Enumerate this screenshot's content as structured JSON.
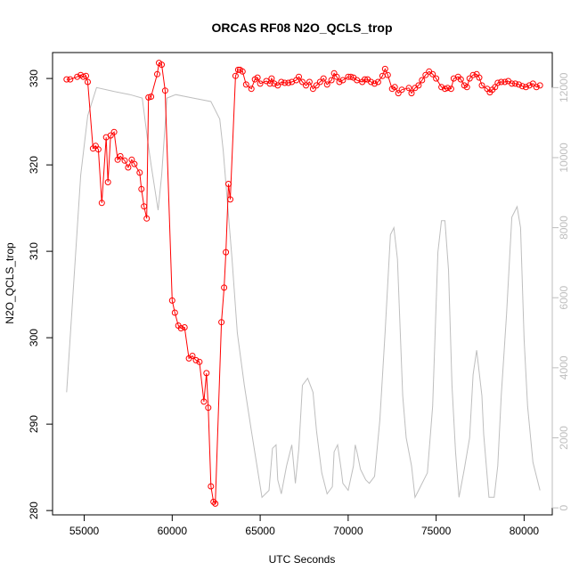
{
  "chart_data": {
    "type": "line",
    "title": "ORCAS RF08 N2O_QCLS_trop",
    "xlabel": "UTC Seconds",
    "ylabel": "N2O_QCLS_trop",
    "xlim": [
      53200,
      81600
    ],
    "ylim": [
      279.5,
      333
    ],
    "y2lim": [
      -200,
      13000
    ],
    "x_ticks": [
      55000,
      60000,
      65000,
      70000,
      75000,
      80000
    ],
    "y_ticks": [
      280,
      290,
      300,
      310,
      320,
      330
    ],
    "y2_ticks": [
      0,
      2000,
      4000,
      6000,
      8000,
      10000,
      12000
    ],
    "grid": false,
    "colors": {
      "primary": "#ff0000",
      "secondary": "#bebebe",
      "axis": "#000000"
    },
    "series": [
      {
        "role": "primary",
        "style": "line+circles",
        "x": [
          54000,
          54200,
          54600,
          54800,
          54950,
          55100,
          55200,
          55500,
          55650,
          55800,
          56000,
          56250,
          56350,
          56500,
          56700,
          56900,
          57050,
          57300,
          57500,
          57700,
          57850,
          58150,
          58250,
          58400,
          58550,
          58650,
          58800,
          59150,
          59250,
          59400,
          59600,
          60000,
          60150,
          60350,
          60500,
          60700,
          60950,
          61150,
          61350,
          61550,
          61800,
          61950,
          62050,
          62200,
          62350,
          62450,
          62800,
          62950,
          63050,
          63200,
          63300,
          63600,
          63750,
          63850,
          64000,
          64200,
          64500,
          64700,
          64850,
          65000,
          65350,
          65550,
          65650,
          65800,
          66000,
          66200,
          66400,
          66600,
          66800,
          67050,
          67200,
          67400,
          67600,
          67800,
          68000,
          68200,
          68400,
          68600,
          68800,
          69050,
          69200,
          69350,
          69500,
          69700,
          70000,
          70150,
          70300,
          70500,
          70800,
          70950,
          71100,
          71300,
          71500,
          71700,
          71950,
          72100,
          72250,
          72500,
          72650,
          72850,
          73050,
          73450,
          73600,
          73800,
          74000,
          74200,
          74400,
          74600,
          74800,
          75000,
          75300,
          75500,
          75650,
          75850,
          76000,
          76250,
          76400,
          76600,
          76750,
          76900,
          77100,
          77300,
          77450,
          77600,
          77900,
          78050,
          78200,
          78350,
          78500,
          78700,
          78900,
          79100,
          79300,
          79500,
          79700,
          79900,
          80100,
          80300,
          80500,
          80700,
          80900
        ],
        "y": [
          329.9,
          329.9,
          330.2,
          330.4,
          330.2,
          330.3,
          329.6,
          321.9,
          322.2,
          321.8,
          315.6,
          323.2,
          318.0,
          323.4,
          323.8,
          320.6,
          321.0,
          320.5,
          319.7,
          320.6,
          320.1,
          319.1,
          317.2,
          315.2,
          313.8,
          327.8,
          327.9,
          330.5,
          331.8,
          331.6,
          328.6,
          304.3,
          302.9,
          301.4,
          301.1,
          301.2,
          297.6,
          297.9,
          297.4,
          297.2,
          292.6,
          295.9,
          291.9,
          282.8,
          281.0,
          280.8,
          301.8,
          305.8,
          309.9,
          317.8,
          316.0,
          330.3,
          331.0,
          331.0,
          330.8,
          329.3,
          328.8,
          329.9,
          330.1,
          329.4,
          329.7,
          329.4,
          330.0,
          329.4,
          329.2,
          329.6,
          329.5,
          329.5,
          329.6,
          329.8,
          330.2,
          329.6,
          329.2,
          329.6,
          328.8,
          329.2,
          329.6,
          330.0,
          329.3,
          329.8,
          330.6,
          330.2,
          329.6,
          329.8,
          330.2,
          330.2,
          330.1,
          329.8,
          329.6,
          329.9,
          329.9,
          329.6,
          329.4,
          329.6,
          330.3,
          331.1,
          330.4,
          328.8,
          329.0,
          328.3,
          328.7,
          328.9,
          328.3,
          328.9,
          329.2,
          329.8,
          330.4,
          330.8,
          330.5,
          330.0,
          329.0,
          328.8,
          328.9,
          328.8,
          330.0,
          330.2,
          329.9,
          329.2,
          329.0,
          330.0,
          330.4,
          330.5,
          330.1,
          329.2,
          328.8,
          328.4,
          328.7,
          329.0,
          329.5,
          329.6,
          329.6,
          329.7,
          329.4,
          329.4,
          329.3,
          329.1,
          329.0,
          329.2,
          329.4,
          329.0,
          329.2
        ]
      },
      {
        "role": "secondary",
        "style": "line",
        "axis": "right",
        "x": [
          54000,
          54800,
          55200,
          55700,
          56600,
          57600,
          58300,
          58600,
          58800,
          59200,
          59400,
          59700,
          60200,
          61200,
          62200,
          62700,
          62900,
          63400,
          63700,
          64100,
          64500,
          65100,
          65500,
          65700,
          65900,
          66000,
          66200,
          66500,
          66800,
          67000,
          67200,
          67400,
          67700,
          68000,
          68200,
          68500,
          68800,
          69100,
          69200,
          69400,
          69600,
          69700,
          70000,
          70300,
          70400,
          70500,
          70700,
          71000,
          71200,
          71500,
          71800,
          72100,
          72400,
          72600,
          72800,
          73100,
          73300,
          73600,
          73800,
          74000,
          74500,
          74800,
          75100,
          75300,
          75500,
          75700,
          75900,
          76100,
          76300,
          76600,
          76900,
          77100,
          77300,
          77600,
          77700,
          78000,
          78300,
          78500,
          78700,
          79000,
          79300,
          79600,
          79800,
          80000,
          80200,
          80500,
          80900
        ],
        "y": [
          3300,
          9500,
          11200,
          12000,
          11900,
          11800,
          11700,
          10500,
          9800,
          8500,
          9500,
          11700,
          11800,
          11700,
          11600,
          11100,
          10200,
          7100,
          5000,
          3500,
          2200,
          300,
          500,
          1700,
          1800,
          800,
          400,
          1200,
          1800,
          700,
          1700,
          3500,
          3700,
          3300,
          2200,
          1000,
          400,
          600,
          1600,
          1800,
          1100,
          700,
          500,
          1200,
          1800,
          1600,
          1100,
          800,
          700,
          900,
          2500,
          5000,
          7800,
          8000,
          7100,
          3200,
          2000,
          1200,
          300,
          500,
          1000,
          2900,
          7300,
          8200,
          8200,
          6800,
          3500,
          1600,
          300,
          1100,
          2000,
          3800,
          4500,
          3200,
          2100,
          300,
          300,
          1200,
          3200,
          5500,
          8300,
          8600,
          8000,
          4800,
          2900,
          1300,
          500
        ]
      }
    ]
  }
}
